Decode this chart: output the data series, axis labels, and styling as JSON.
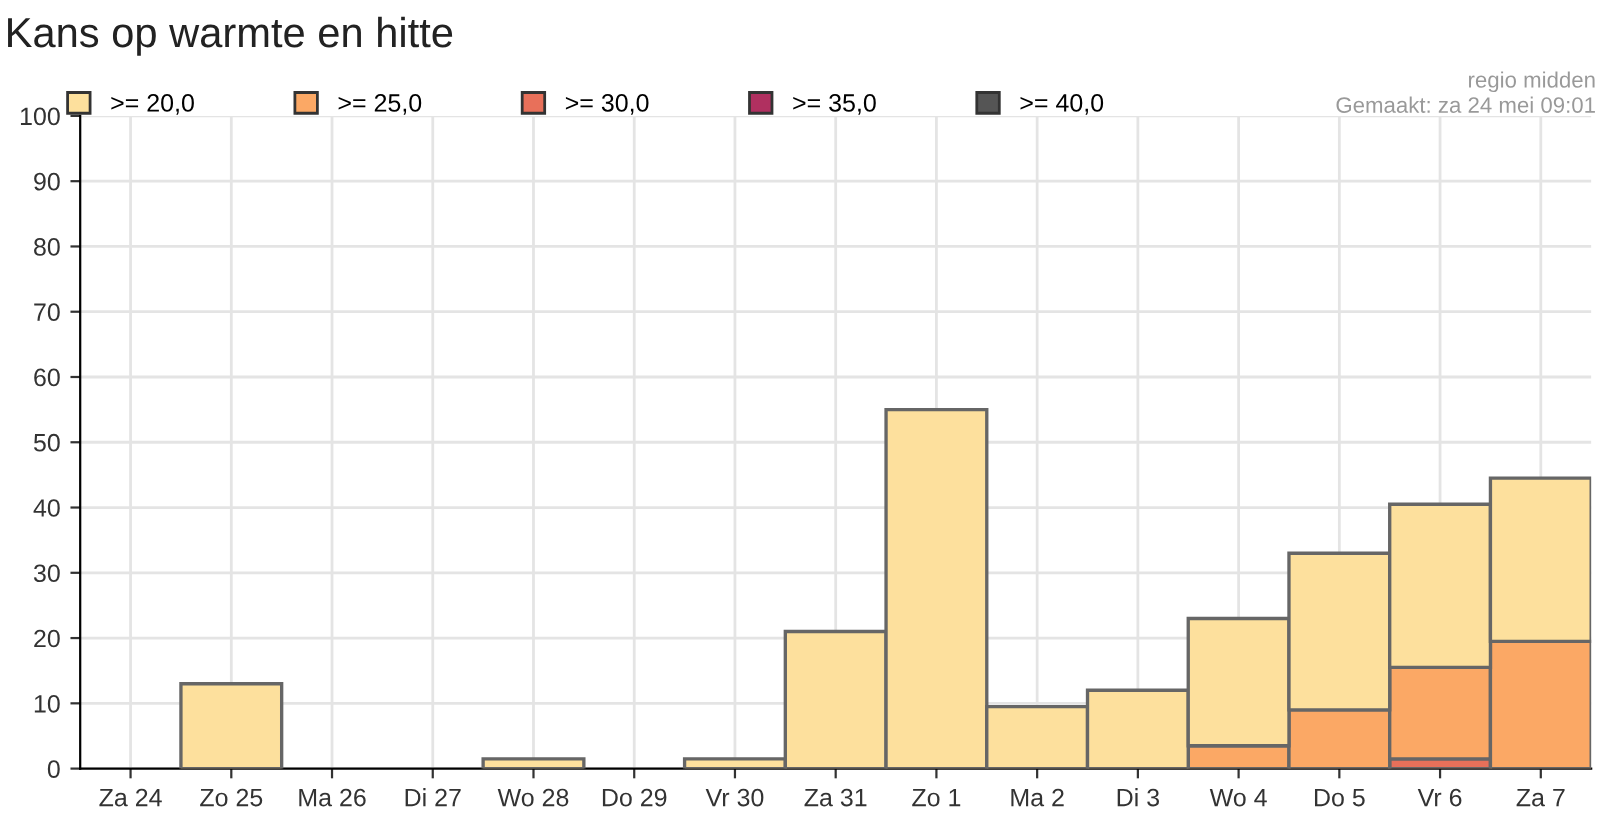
{
  "chart_data": {
    "type": "bar",
    "title": "Kans op warmte en hitte",
    "stacked": true,
    "categories": [
      "Za 24",
      "Zo 25",
      "Ma 26",
      "Di 27",
      "Wo 28",
      "Do 29",
      "Vr 30",
      "Za 31",
      "Zo 1",
      "Ma 2",
      "Di 3",
      "Wo 4",
      "Do 5",
      "Vr 6",
      "Za 7"
    ],
    "series": [
      {
        "name": ">= 40,0",
        "color": "#555555",
        "values": [
          null,
          null,
          null,
          null,
          null,
          null,
          null,
          null,
          null,
          null,
          null,
          null,
          null,
          null,
          null
        ]
      },
      {
        "name": ">= 35,0",
        "color": "#b03060",
        "values": [
          null,
          null,
          null,
          null,
          null,
          null,
          null,
          null,
          null,
          null,
          null,
          null,
          null,
          null,
          null
        ]
      },
      {
        "name": ">= 30,0",
        "color": "#e8705a",
        "values": [
          null,
          null,
          null,
          null,
          null,
          null,
          null,
          null,
          null,
          null,
          null,
          null,
          null,
          1.5,
          null
        ]
      },
      {
        "name": ">= 25,0",
        "color": "#fba865",
        "values": [
          null,
          null,
          null,
          null,
          null,
          null,
          null,
          null,
          null,
          null,
          null,
          3.5,
          9,
          14,
          19.5
        ]
      },
      {
        "name": ">= 20,0",
        "color": "#fde09d",
        "values": [
          null,
          13,
          null,
          null,
          1.5,
          null,
          1.5,
          21,
          55,
          9.5,
          12,
          19.5,
          24,
          25,
          25
        ]
      }
    ],
    "ylim": [
      0,
      100
    ],
    "yticks": [
      0,
      10,
      20,
      30,
      40,
      50,
      60,
      70,
      80,
      90,
      100
    ],
    "grid": true,
    "legend": "top left",
    "annotations": [
      "regio midden",
      "Gemaakt: za 24 mei 09:01"
    ]
  }
}
